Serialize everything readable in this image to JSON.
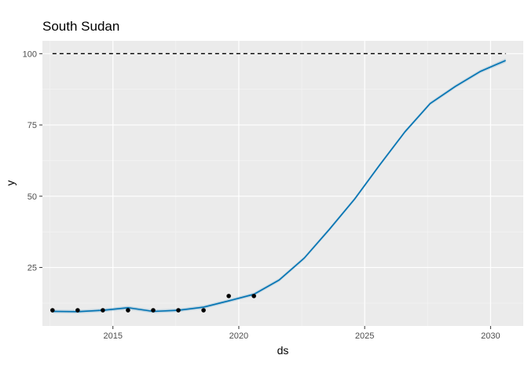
{
  "chart_data": {
    "type": "line",
    "title": "South Sudan",
    "xlabel": "ds",
    "ylabel": "y",
    "xlim": [
      2012.2,
      2031.3
    ],
    "ylim": [
      4.5,
      104.5
    ],
    "x_ticks": [
      2015,
      2020,
      2025,
      2030
    ],
    "x_tick_labels": [
      "2015",
      "2020",
      "2025",
      "2030"
    ],
    "y_ticks": [
      25,
      50,
      75,
      100
    ],
    "y_tick_labels": [
      "25",
      "50",
      "75",
      "100"
    ],
    "grid": true,
    "background": "#EBEBEB",
    "series": [
      {
        "role": "forecast",
        "color": "#0072B2",
        "x": [
          2012.6,
          2013.6,
          2014.6,
          2015.6,
          2016.6,
          2017.6,
          2018.6,
          2019.6,
          2020.6,
          2021.6,
          2022.6,
          2023.6,
          2024.6,
          2025.6,
          2026.6,
          2027.6,
          2028.6,
          2029.6,
          2030.6
        ],
        "y": [
          9.6,
          9.5,
          10.0,
          10.9,
          9.6,
          10.0,
          11.1,
          13.3,
          15.6,
          20.6,
          28.3,
          38.4,
          49.0,
          61.0,
          72.6,
          82.5,
          88.5,
          93.8,
          97.6
        ],
        "lower": [
          9.0,
          8.9,
          9.4,
          10.2,
          9.0,
          9.4,
          10.5,
          12.7,
          15.0,
          20.0,
          27.7,
          37.8,
          48.4,
          60.4,
          72.0,
          81.9,
          87.9,
          93.2,
          96.9
        ],
        "upper": [
          10.2,
          10.1,
          10.6,
          11.5,
          10.2,
          10.6,
          11.7,
          13.9,
          16.2,
          21.2,
          28.9,
          39.0,
          49.6,
          61.6,
          73.2,
          83.1,
          89.1,
          94.4,
          98.3
        ]
      },
      {
        "role": "cap",
        "style": "dashed",
        "color": "#000000",
        "x": [
          2012.6,
          2030.6
        ],
        "y": [
          100,
          100
        ]
      },
      {
        "role": "observed",
        "color": "#000000",
        "x": [
          2012.6,
          2013.6,
          2014.6,
          2015.6,
          2016.6,
          2017.6,
          2018.6,
          2019.6,
          2020.6
        ],
        "y": [
          10,
          10,
          10,
          10,
          10,
          10,
          10,
          15,
          15
        ]
      }
    ]
  }
}
